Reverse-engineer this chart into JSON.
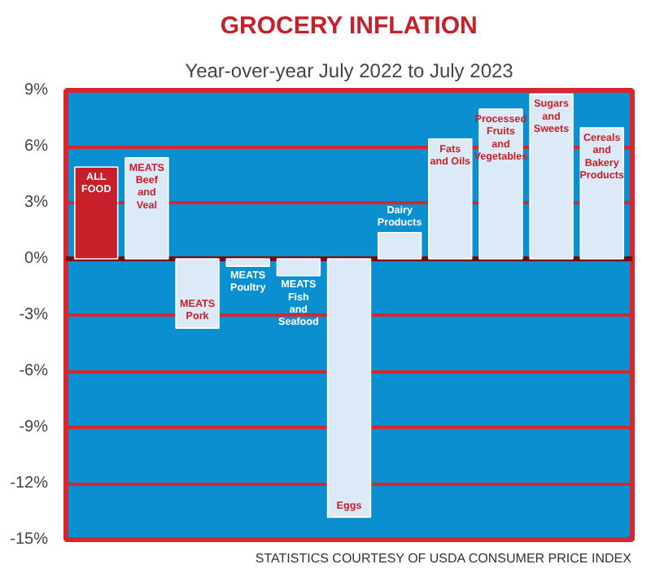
{
  "chart_data": {
    "type": "bar",
    "title": "GROCERY INFLATION",
    "subtitle": "Year-over-year July 2022 to July 2023",
    "categories": [
      "ALL\nFOOD",
      "MEATS\nBeef\nand\nVeal",
      "MEATS\nPork",
      "MEATS\nPoultry",
      "MEATS\nFish\nand\nSeafood",
      "Eggs",
      "Dairy\nProducts",
      "Fats\nand Oils",
      "Processed\nFruits\nand\nVegetables",
      "Sugars\nand\nSweets",
      "Cereals\nand\nBakery\nProducts"
    ],
    "values": [
      4.9,
      5.4,
      -3.7,
      -0.4,
      -0.9,
      -13.8,
      1.4,
      6.4,
      8.0,
      8.8,
      7.0
    ],
    "colors": [
      "#c8202a",
      "#dce9f6",
      "#dce9f6",
      "#dce9f6",
      "#dce9f6",
      "#dce9f6",
      "#dce9f6",
      "#dce9f6",
      "#dce9f6",
      "#dce9f6",
      "#dce9f6"
    ],
    "ylim": [
      -15,
      9
    ],
    "yticks": [
      {
        "value": -15,
        "label": "-15%"
      },
      {
        "value": -12,
        "label": "-12%"
      },
      {
        "value": -9,
        "label": "-9%"
      },
      {
        "value": -6,
        "label": "-6%"
      },
      {
        "value": -3,
        "label": "-3%"
      },
      {
        "value": 0,
        "label": "0%"
      },
      {
        "value": 3,
        "label": "3%"
      },
      {
        "value": 6,
        "label": "6%"
      },
      {
        "value": 9,
        "label": "9%"
      }
    ],
    "grid": "y",
    "ref_lines": [
      {
        "axis": "y",
        "value": 0,
        "color": "#7a0a0a"
      }
    ],
    "annotations": [
      "STATISTICS COURTESY OF USDA CONSUMER PRICE INDEX"
    ]
  }
}
